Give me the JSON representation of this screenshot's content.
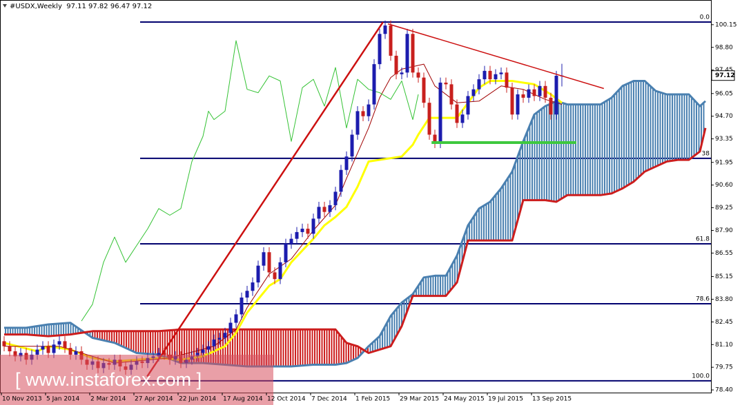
{
  "chart_data": {
    "type": "candlestick",
    "title": "#USDX,Weekly  97.11 97.82 96.47 97.12",
    "watermark": "[ www.instaforex.com ]",
    "xlim": [
      -0.75,
      128
    ],
    "ylim": [
      78.24,
      101.62
    ],
    "yticks": [
      100.15,
      {
        "value": 98.8,
        "label": "98.80"
      },
      97.45,
      96.05,
      {
        "value": 94.7,
        "label": "94.70"
      },
      93.35,
      91.95,
      {
        "value": 90.6,
        "label": "90.60"
      },
      89.25,
      {
        "value": 87.9,
        "label": "87.90"
      },
      86.55,
      85.15,
      {
        "value": 83.8,
        "label": "83.80"
      },
      82.45,
      {
        "value": 81.1,
        "label": "81.10"
      },
      79.75,
      {
        "value": 78.4,
        "label": "78.40"
      }
    ],
    "xticks": [
      {
        "value": 0,
        "label": "10 Nov 2013"
      },
      {
        "value": 8,
        "label": "5 Jan 2014"
      },
      {
        "value": 16,
        "label": "2 Mar 2014"
      },
      {
        "value": 24,
        "label": "27 Apr 2014"
      },
      {
        "value": 32,
        "label": "22 Jun 2014"
      },
      {
        "value": 40,
        "label": "17 Aug 2014"
      },
      {
        "value": 48,
        "label": "12 Oct 2014"
      },
      {
        "value": 56,
        "label": "7 Dec 2014"
      },
      {
        "value": 64,
        "label": "1 Feb 2015"
      },
      {
        "value": 72,
        "label": "29 Mar 2015"
      },
      {
        "value": 80,
        "label": "24 May 2015"
      },
      {
        "value": 88,
        "label": "19 Jul 2015"
      },
      {
        "value": 96,
        "label": "13 Sep 2015"
      }
    ],
    "last_price": 97.12,
    "colors": {
      "bull": "#1c1cae",
      "bear": "#c8201e",
      "fib": "#00006e"
    },
    "fib_levels": [
      {
        "price": 100.31,
        "label": "0.0"
      },
      {
        "price": 92.19,
        "label": "38"
      },
      {
        "price": 87.1,
        "label": "61.8"
      },
      {
        "price": 83.53,
        "label": "78.6"
      },
      {
        "price": 78.94,
        "label": "100.0"
      }
    ],
    "candles": [
      [
        81.3,
        81.6,
        80.7,
        81.0
      ],
      [
        81.0,
        81.3,
        80.4,
        80.7
      ],
      [
        80.7,
        81.0,
        80.1,
        80.4
      ],
      [
        80.4,
        80.9,
        80.1,
        80.6
      ],
      [
        80.6,
        80.9,
        79.9,
        80.2
      ],
      [
        80.2,
        80.8,
        79.9,
        80.5
      ],
      [
        80.5,
        81.1,
        80.2,
        80.8
      ],
      [
        80.8,
        81.3,
        80.5,
        81.0
      ],
      [
        81.0,
        81.3,
        80.3,
        80.6
      ],
      [
        80.6,
        81.4,
        80.3,
        81.1
      ],
      [
        81.1,
        81.6,
        80.8,
        81.3
      ],
      [
        81.3,
        81.6,
        80.6,
        80.9
      ],
      [
        80.9,
        81.2,
        80.2,
        80.5
      ],
      [
        80.5,
        81.0,
        80.2,
        80.7
      ],
      [
        80.7,
        81.0,
        79.9,
        80.2
      ],
      [
        80.2,
        80.5,
        79.6,
        79.9
      ],
      [
        79.9,
        80.4,
        79.6,
        80.1
      ],
      [
        80.1,
        80.4,
        79.4,
        79.7
      ],
      [
        79.7,
        80.3,
        79.4,
        80.0
      ],
      [
        80.0,
        80.3,
        79.6,
        79.9
      ],
      [
        79.9,
        80.5,
        79.6,
        80.2
      ],
      [
        80.2,
        80.5,
        79.5,
        79.8
      ],
      [
        79.8,
        80.1,
        79.3,
        79.6
      ],
      [
        79.6,
        80.2,
        79.3,
        79.9
      ],
      [
        79.9,
        80.4,
        79.6,
        80.1
      ],
      [
        80.1,
        80.4,
        79.7,
        80.0
      ],
      [
        80.0,
        80.6,
        79.7,
        80.3
      ],
      [
        80.3,
        80.7,
        80.0,
        80.4
      ],
      [
        80.4,
        80.9,
        80.1,
        80.6
      ],
      [
        80.6,
        80.9,
        80.2,
        80.5
      ],
      [
        80.5,
        80.8,
        79.9,
        80.2
      ],
      [
        80.2,
        80.7,
        79.9,
        80.4
      ],
      [
        80.4,
        80.7,
        79.7,
        80.0
      ],
      [
        80.0,
        80.5,
        79.7,
        80.2
      ],
      [
        80.2,
        80.7,
        79.9,
        80.4
      ],
      [
        80.4,
        80.9,
        80.1,
        80.6
      ],
      [
        80.6,
        81.1,
        80.3,
        80.8
      ],
      [
        80.8,
        81.3,
        80.5,
        81.0
      ],
      [
        81.0,
        81.7,
        80.7,
        81.4
      ],
      [
        81.4,
        81.8,
        81.1,
        81.5
      ],
      [
        81.5,
        82.1,
        81.2,
        81.8
      ],
      [
        81.8,
        82.7,
        81.5,
        82.4
      ],
      [
        82.4,
        83.2,
        82.1,
        82.9
      ],
      [
        82.9,
        84.2,
        82.6,
        83.9
      ],
      [
        83.9,
        84.6,
        83.6,
        84.3
      ],
      [
        84.3,
        85.1,
        84.0,
        84.8
      ],
      [
        84.8,
        86.1,
        84.5,
        85.8
      ],
      [
        85.8,
        86.9,
        85.5,
        86.6
      ],
      [
        86.6,
        86.9,
        85.1,
        85.4
      ],
      [
        85.4,
        85.7,
        84.7,
        85.0
      ],
      [
        85.0,
        86.3,
        84.7,
        86.0
      ],
      [
        86.0,
        87.4,
        85.7,
        87.1
      ],
      [
        87.1,
        87.7,
        86.8,
        87.4
      ],
      [
        87.4,
        88.1,
        87.1,
        87.8
      ],
      [
        87.8,
        88.3,
        87.5,
        88.0
      ],
      [
        88.0,
        88.3,
        87.4,
        87.7
      ],
      [
        87.7,
        88.9,
        87.4,
        88.6
      ],
      [
        88.6,
        89.6,
        88.3,
        89.3
      ],
      [
        89.3,
        89.6,
        88.7,
        89.0
      ],
      [
        89.0,
        89.7,
        88.7,
        89.4
      ],
      [
        89.4,
        90.5,
        89.1,
        90.2
      ],
      [
        90.2,
        91.8,
        89.9,
        91.5
      ],
      [
        91.5,
        92.6,
        91.2,
        92.3
      ],
      [
        92.3,
        93.9,
        92.0,
        93.6
      ],
      [
        93.6,
        95.3,
        93.3,
        95.0
      ],
      [
        95.0,
        95.3,
        94.4,
        94.7
      ],
      [
        94.7,
        95.7,
        94.4,
        95.4
      ],
      [
        95.4,
        98.1,
        95.1,
        97.8
      ],
      [
        97.8,
        99.9,
        97.5,
        99.6
      ],
      [
        99.6,
        100.4,
        99.3,
        100.1
      ],
      [
        100.1,
        100.4,
        98.0,
        98.3
      ],
      [
        98.3,
        98.6,
        96.9,
        97.2
      ],
      [
        97.2,
        97.6,
        96.9,
        97.3
      ],
      [
        97.3,
        99.9,
        97.0,
        99.6
      ],
      [
        99.6,
        99.9,
        97.0,
        97.3
      ],
      [
        97.3,
        97.6,
        96.7,
        97.0
      ],
      [
        97.0,
        97.3,
        95.2,
        95.5
      ],
      [
        95.5,
        95.8,
        93.3,
        93.6
      ],
      [
        93.6,
        93.9,
        92.8,
        93.1
      ],
      [
        93.1,
        97.0,
        92.8,
        96.7
      ],
      [
        96.7,
        97.0,
        96.3,
        96.6
      ],
      [
        96.6,
        96.9,
        95.1,
        95.4
      ],
      [
        95.4,
        95.7,
        94.0,
        94.3
      ],
      [
        94.3,
        95.1,
        94.0,
        94.8
      ],
      [
        94.8,
        96.2,
        94.5,
        95.9
      ],
      [
        95.9,
        96.6,
        95.6,
        96.3
      ],
      [
        96.3,
        97.2,
        96.0,
        96.9
      ],
      [
        96.9,
        97.7,
        96.6,
        97.4
      ],
      [
        97.4,
        97.7,
        96.6,
        96.9
      ],
      [
        96.9,
        97.5,
        96.6,
        97.2
      ],
      [
        97.2,
        97.6,
        96.9,
        97.3
      ],
      [
        97.3,
        97.6,
        96.1,
        96.4
      ],
      [
        96.4,
        96.7,
        94.5,
        94.8
      ],
      [
        94.8,
        96.3,
        94.5,
        96.0
      ],
      [
        96.0,
        96.3,
        95.5,
        95.8
      ],
      [
        95.8,
        96.6,
        95.5,
        96.3
      ],
      [
        96.3,
        96.6,
        95.6,
        95.9
      ],
      [
        95.9,
        96.8,
        95.6,
        96.5
      ],
      [
        96.5,
        96.8,
        95.5,
        95.8
      ],
      [
        95.8,
        96.1,
        94.5,
        94.8
      ],
      [
        94.8,
        97.4,
        94.5,
        97.11
      ],
      [
        97.11,
        97.82,
        96.47,
        97.12
      ]
    ],
    "cloud": {
      "a_color": "#4a80b0",
      "b_color": "#cc1d1d",
      "x": [
        0,
        4,
        8,
        12,
        16,
        20,
        24,
        28,
        32,
        36,
        40,
        44,
        48,
        52,
        56,
        60,
        62,
        64,
        66,
        68,
        70,
        72,
        74,
        76,
        78,
        80,
        82,
        84,
        86,
        88,
        90,
        92,
        94,
        96,
        98,
        100,
        102,
        104,
        106,
        108,
        110,
        112,
        114,
        116,
        118,
        120,
        122,
        124,
        126,
        127
      ],
      "a": [
        82.1,
        82.1,
        82.3,
        82.4,
        81.5,
        81.2,
        80.6,
        80.5,
        80.0,
        80.0,
        79.9,
        79.8,
        79.8,
        79.8,
        79.9,
        79.9,
        80.0,
        80.3,
        81.0,
        81.6,
        82.8,
        83.6,
        84.1,
        85.1,
        85.2,
        85.2,
        86.4,
        88.2,
        89.2,
        89.6,
        90.4,
        91.4,
        93.2,
        94.8,
        95.3,
        95.6,
        95.4,
        95.4,
        95.4,
        95.4,
        95.8,
        96.5,
        96.8,
        96.8,
        96.2,
        96.0,
        96.0,
        96.0,
        95.3,
        95.6
      ],
      "b": [
        81.7,
        81.7,
        81.6,
        81.7,
        81.9,
        81.9,
        81.9,
        81.9,
        82.0,
        82.0,
        82.0,
        82.0,
        82.0,
        82.0,
        82.0,
        82.0,
        81.2,
        81.0,
        80.6,
        80.8,
        81.0,
        82.2,
        84.0,
        84.0,
        84.0,
        84.0,
        84.8,
        87.3,
        87.3,
        87.3,
        87.3,
        87.3,
        89.7,
        89.7,
        89.7,
        89.6,
        90.0,
        90.0,
        90.0,
        90.0,
        90.1,
        90.4,
        90.8,
        91.4,
        91.7,
        92.0,
        92.1,
        92.1,
        92.6,
        94.0
      ]
    },
    "lines": [
      {
        "color": "#ffff00",
        "width": 3,
        "x": [
          0,
          6,
          8,
          12,
          16,
          20,
          24,
          28,
          32,
          36,
          40,
          42,
          44,
          48,
          50,
          52,
          56,
          58,
          60,
          62,
          64,
          66,
          72,
          74,
          75,
          77,
          82,
          84,
          86,
          88,
          92,
          96,
          99,
          101
        ],
        "values": [
          81.2,
          80.7,
          81.0,
          80.8,
          80.3,
          80.1,
          80.2,
          80.3,
          80.2,
          80.4,
          81.0,
          81.8,
          83.0,
          84.6,
          85.0,
          86.0,
          87.4,
          88.2,
          88.7,
          89.3,
          90.5,
          92.0,
          92.3,
          93.0,
          93.6,
          94.6,
          94.6,
          95.5,
          96.4,
          96.8,
          96.8,
          96.6,
          96.0,
          95.5
        ]
      },
      {
        "color": "#a00000",
        "width": 1,
        "x": [
          0,
          10,
          20,
          30,
          38,
          42,
          44,
          48,
          52,
          56,
          60,
          62,
          64,
          66,
          68,
          70,
          72,
          76,
          78,
          82,
          86,
          90,
          94,
          98,
          101
        ],
        "values": [
          81.0,
          81.0,
          80.0,
          80.3,
          81.0,
          82.0,
          83.3,
          85.3,
          86.2,
          87.9,
          89.4,
          91.0,
          92.5,
          94.0,
          95.8,
          97.0,
          97.5,
          97.8,
          96.5,
          95.5,
          95.6,
          96.5,
          96.3,
          95.7,
          95.4
        ]
      },
      {
        "color": "#33c233",
        "width": 1,
        "x": [
          14,
          16,
          18,
          20,
          22,
          24,
          26,
          28,
          30,
          32,
          34,
          36,
          37,
          38,
          40,
          42,
          44,
          46,
          48,
          50,
          52,
          54,
          56,
          58,
          60,
          62,
          64,
          66,
          68,
          70,
          72,
          74,
          75
        ],
        "values": [
          82.5,
          83.5,
          86.0,
          87.5,
          86.0,
          87.0,
          88.0,
          89.2,
          88.8,
          89.2,
          92.0,
          93.5,
          95.0,
          94.5,
          95.0,
          99.2,
          96.3,
          96.1,
          97.1,
          96.8,
          93.2,
          96.4,
          96.9,
          95.3,
          97.6,
          94.0,
          96.9,
          96.3,
          96.1,
          95.7,
          96.8,
          94.5,
          96.0
        ]
      }
    ],
    "trendlines": [
      {
        "color": "#cc1010",
        "width": 2.5,
        "x": [
          25.9,
          68.6
        ],
        "values": [
          79.2,
          100.3
        ]
      },
      {
        "color": "#cc1010",
        "width": 1.5,
        "x": [
          69.5,
          108.6
        ],
        "values": [
          100.2,
          96.35
        ]
      },
      {
        "color": "#3ec83e",
        "width": 4,
        "x": [
          77.4,
          103.6
        ],
        "values": [
          93.13,
          93.13
        ]
      }
    ]
  }
}
